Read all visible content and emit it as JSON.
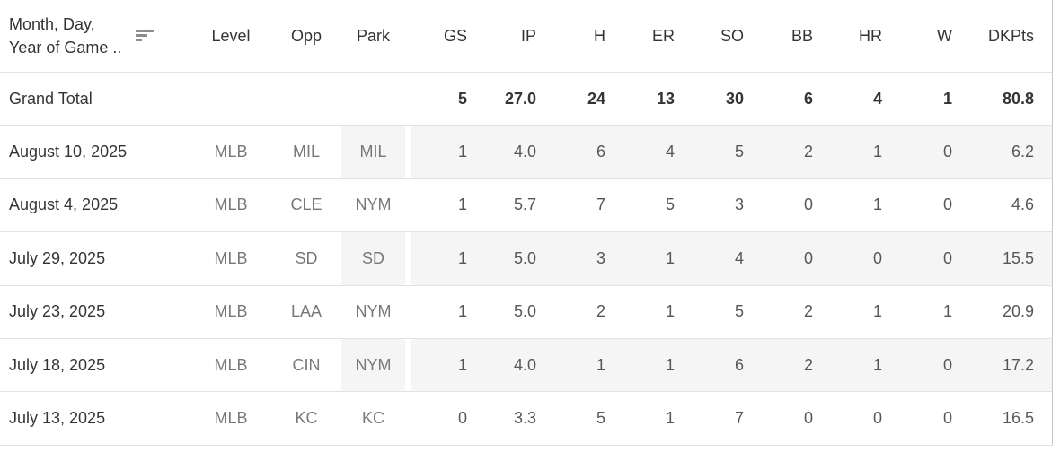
{
  "header": {
    "date_label_line1": "Month, Day,",
    "date_label_line2": "Year of Game ..",
    "sort_icon": "sort-descending",
    "columns_left": [
      "Level",
      "Opp",
      "Park"
    ],
    "columns_stats": [
      "GS",
      "IP",
      "H",
      "ER",
      "SO",
      "BB",
      "HR",
      "W",
      "DKPts"
    ]
  },
  "grand_total": {
    "label": "Grand Total",
    "gs": "5",
    "ip": "27.0",
    "h": "24",
    "er": "13",
    "so": "30",
    "bb": "6",
    "hr": "4",
    "w": "1",
    "dkpts": "80.8"
  },
  "rows": [
    {
      "date": "August 10, 2025",
      "level": "MLB",
      "opp": "MIL",
      "park": "MIL",
      "gs": "1",
      "ip": "4.0",
      "h": "6",
      "er": "4",
      "so": "5",
      "bb": "2",
      "hr": "1",
      "w": "0",
      "dkpts": "6.2"
    },
    {
      "date": "August 4, 2025",
      "level": "MLB",
      "opp": "CLE",
      "park": "NYM",
      "gs": "1",
      "ip": "5.7",
      "h": "7",
      "er": "5",
      "so": "3",
      "bb": "0",
      "hr": "1",
      "w": "0",
      "dkpts": "4.6"
    },
    {
      "date": "July 29, 2025",
      "level": "MLB",
      "opp": "SD",
      "park": "SD",
      "gs": "1",
      "ip": "5.0",
      "h": "3",
      "er": "1",
      "so": "4",
      "bb": "0",
      "hr": "0",
      "w": "0",
      "dkpts": "15.5"
    },
    {
      "date": "July 23, 2025",
      "level": "MLB",
      "opp": "LAA",
      "park": "NYM",
      "gs": "1",
      "ip": "5.0",
      "h": "2",
      "er": "1",
      "so": "5",
      "bb": "2",
      "hr": "1",
      "w": "1",
      "dkpts": "20.9"
    },
    {
      "date": "July 18, 2025",
      "level": "MLB",
      "opp": "CIN",
      "park": "NYM",
      "gs": "1",
      "ip": "4.0",
      "h": "1",
      "er": "1",
      "so": "6",
      "bb": "2",
      "hr": "1",
      "w": "0",
      "dkpts": "17.2"
    },
    {
      "date": "July 13, 2025",
      "level": "MLB",
      "opp": "KC",
      "park": "KC",
      "gs": "0",
      "ip": "3.3",
      "h": "5",
      "er": "1",
      "so": "7",
      "bb": "0",
      "hr": "0",
      "w": "0",
      "dkpts": "16.5"
    }
  ],
  "colors": {
    "band": "#f5f5f5",
    "row_border": "#e2e2e2",
    "divider": "#c8c8c8",
    "text_dark": "#343434",
    "text_gray": "#787878",
    "text_number": "#575757"
  }
}
